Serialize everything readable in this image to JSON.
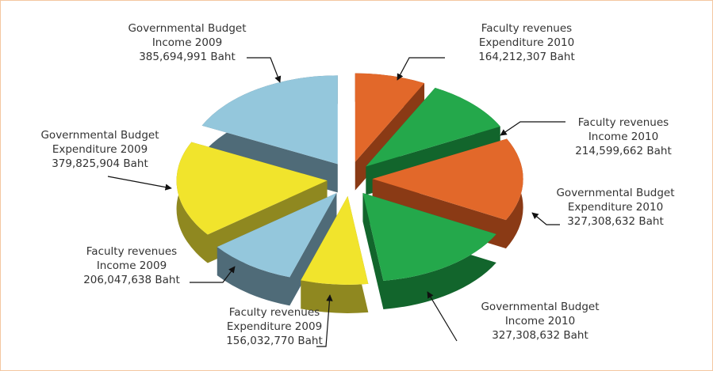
{
  "chart_data": {
    "type": "pie3d",
    "categories": [
      "Faculty revenues Expenditure 2010",
      "Faculty revenues Income 2010",
      "Governmental Budget Expenditure 2010",
      "Governmental Budget Income 2010",
      "Faculty revenues Expenditure 2009",
      "Faculty revenues Income 2009",
      "Governmental Budget Expenditure 2009",
      "Governmental Budget Income 2009"
    ],
    "values": [
      164212307,
      214599662,
      327308632,
      327308632,
      156032770,
      206047638,
      379825904,
      385694991
    ],
    "value_labels": [
      "164,212,307 Baht",
      "214,599,662 Baht",
      "327,308,632 Baht",
      "327,308,632 Baht",
      "156,032,770 Baht",
      "206,047,638 Baht",
      "379,825,904 Baht",
      "385,694,991 Baht"
    ],
    "colors": [
      "#e2682a",
      "#24a84b",
      "#e2682a",
      "#24a84b",
      "#f1e42c",
      "#94c7dc",
      "#f1e42c",
      "#94c7dc"
    ],
    "side_colors": [
      "#8a3a15",
      "#12652c",
      "#8a3a15",
      "#12652c",
      "#8f8820",
      "#4f6b78",
      "#8f8820",
      "#4f6b78"
    ]
  }
}
